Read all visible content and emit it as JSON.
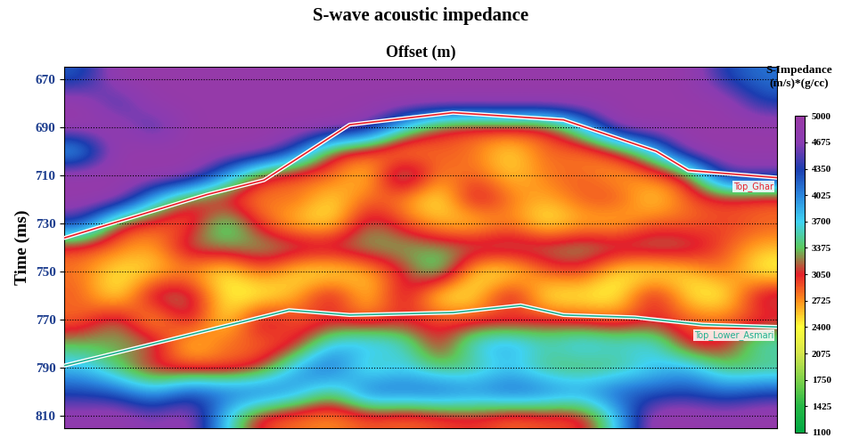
{
  "chart_data": {
    "type": "heatmap",
    "title": "S-wave acoustic impedance",
    "x_label": "Offset (m)",
    "y_label": "Time (ms)",
    "tick_labels": "y",
    "xlim": [
      0,
      20
    ],
    "ylim": [
      815,
      665
    ],
    "yticks": [
      670,
      690,
      710,
      730,
      750,
      770,
      790,
      810
    ],
    "grid": true,
    "columns": [
      0.5,
      1.5,
      2.5,
      3.5,
      4.5,
      5.5,
      6.5,
      7.5,
      8.5,
      9.5,
      10.5,
      11.5,
      12.5,
      13.5,
      14.5,
      15.5,
      16.5,
      17.5,
      18.5,
      19.5
    ],
    "rows": [
      670,
      680,
      690,
      700,
      710,
      720,
      730,
      740,
      750,
      760,
      770,
      780,
      790,
      800,
      810
    ],
    "cells": [
      [
        4200,
        4900,
        4900,
        4900,
        4900,
        4900,
        4900,
        4900,
        4900,
        4900,
        4900,
        4900,
        4900,
        4900,
        4900,
        4900,
        4900,
        4900,
        4300,
        4100
      ],
      [
        4900,
        4300,
        4900,
        4900,
        4900,
        4900,
        4900,
        4900,
        4900,
        4900,
        4900,
        4900,
        4900,
        4900,
        4900,
        4900,
        4900,
        4900,
        4900,
        4300
      ],
      [
        4900,
        4900,
        4300,
        4900,
        4900,
        4900,
        4900,
        4900,
        4700,
        3700,
        3000,
        2900,
        3000,
        2900,
        3700,
        4900,
        4900,
        4900,
        4900,
        4900
      ],
      [
        3700,
        4900,
        4900,
        4900,
        4900,
        4900,
        4300,
        3000,
        2900,
        2500,
        2900,
        2800,
        2400,
        2900,
        2700,
        3000,
        3700,
        4900,
        4900,
        4900
      ],
      [
        4900,
        4900,
        4900,
        4900,
        4000,
        3000,
        2800,
        2900,
        2400,
        3700,
        2700,
        2900,
        2500,
        2800,
        2900,
        2600,
        2800,
        3000,
        4600,
        4600
      ],
      [
        4900,
        4900,
        3800,
        3000,
        2900,
        2700,
        2900,
        2400,
        2900,
        2700,
        2300,
        3300,
        2800,
        2600,
        2900,
        3000,
        2400,
        2900,
        2900,
        2800
      ],
      [
        4400,
        3000,
        2900,
        2800,
        3700,
        2900,
        2500,
        2400,
        3300,
        2900,
        2600,
        2400,
        2800,
        2300,
        2600,
        2500,
        2900,
        2800,
        3000,
        2900
      ],
      [
        2900,
        2800,
        2600,
        3300,
        3300,
        3400,
        3350,
        3300,
        3350,
        3400,
        3300,
        3350,
        3350,
        3300,
        3400,
        3300,
        3350,
        3300,
        2900,
        2600
      ],
      [
        2800,
        2400,
        2500,
        2700,
        2300,
        2900,
        2400,
        2300,
        2600,
        3000,
        3700,
        2400,
        2300,
        2900,
        3000,
        2400,
        2300,
        2500,
        2900,
        2300
      ],
      [
        2900,
        2300,
        3350,
        3300,
        2400,
        2300,
        2600,
        3300,
        2400,
        3300,
        2300,
        2400,
        3350,
        2300,
        2400,
        2300,
        3300,
        2400,
        2300,
        3300
      ],
      [
        2800,
        3350,
        2400,
        3300,
        2300,
        3350,
        2900,
        2900,
        2800,
        2950,
        3000,
        2900,
        2800,
        3000,
        2900,
        2800,
        2950,
        2900,
        2800,
        2900
      ],
      [
        3350,
        3300,
        3350,
        2400,
        2900,
        2800,
        2900,
        3800,
        3900,
        3700,
        2900,
        3800,
        4000,
        3600,
        3900,
        3700,
        3800,
        2900,
        3000,
        3700
      ],
      [
        3800,
        3350,
        2900,
        2900,
        2800,
        3000,
        3900,
        4300,
        3350,
        3700,
        3350,
        3400,
        3700,
        3350,
        3300,
        3350,
        3700,
        3900,
        3350,
        3350
      ],
      [
        4300,
        4200,
        3800,
        4300,
        4200,
        4300,
        4000,
        3350,
        4300,
        4200,
        4300,
        4100,
        4300,
        4200,
        4000,
        4300,
        4200,
        4300,
        4100,
        4300
      ],
      [
        4800,
        4900,
        4600,
        4900,
        3700,
        2900,
        2800,
        2700,
        2900,
        2800,
        2900,
        3000,
        2800,
        2900,
        2900,
        3700,
        4900,
        4900,
        4800,
        4900
      ]
    ],
    "colorbar": {
      "title": "S-Impedance\n(m/s)*(g/cc)",
      "range": [
        1100,
        5000
      ],
      "ticks": [
        1100,
        1425,
        1750,
        2075,
        2400,
        2725,
        3050,
        3375,
        3700,
        4025,
        4350,
        4675,
        5000
      ]
    },
    "series": [
      {
        "name": "Top_Ghar",
        "color": "#e8202a",
        "x": [
          0,
          2,
          4,
          5.6,
          8,
          10.9,
          14,
          16.6,
          17.5,
          20
        ],
        "values": [
          736,
          727,
          718,
          712,
          689,
          684,
          687,
          700,
          708,
          711
        ]
      },
      {
        "name": "Top_Lower_Asmari",
        "color": "#20b090",
        "x": [
          0,
          3.3,
          6.3,
          8,
          10.9,
          12.8,
          14,
          16,
          17.9,
          20
        ],
        "values": [
          789,
          777,
          766,
          768,
          767,
          764,
          768,
          769,
          772,
          773
        ]
      }
    ]
  }
}
